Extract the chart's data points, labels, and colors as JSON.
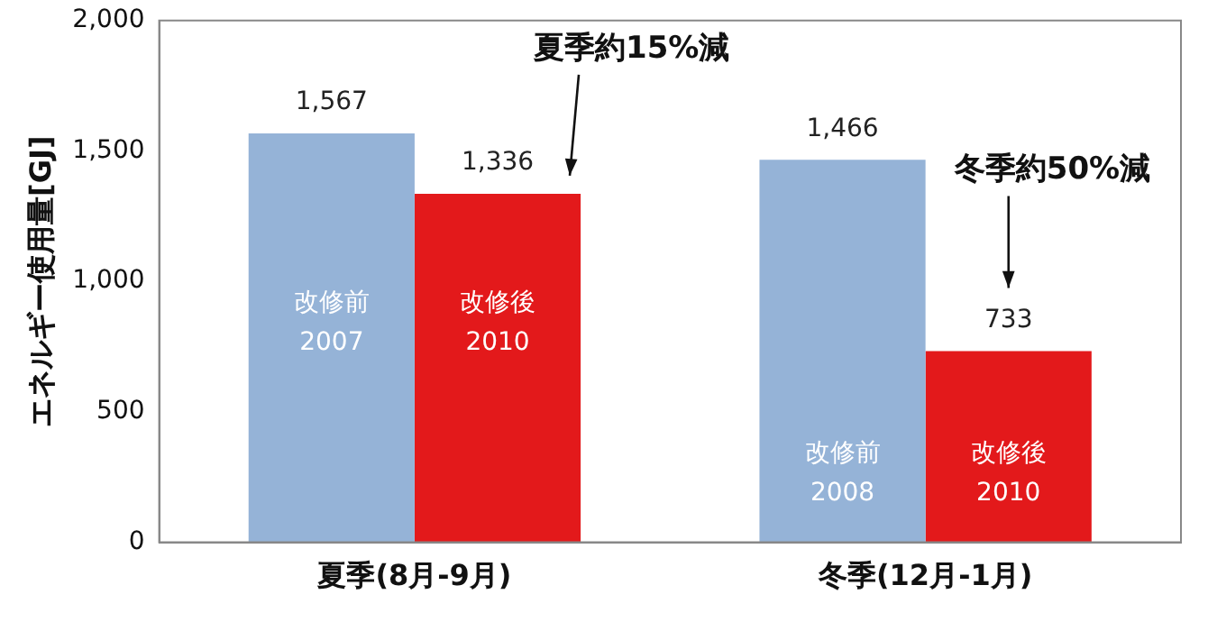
{
  "chart_data": {
    "type": "bar",
    "ylabel": "エネルギー使用量[GJ]",
    "categories": [
      "夏季(8月-9月)",
      "冬季(12月-1月)"
    ],
    "series": [
      {
        "color": "#95b3d7",
        "values": [
          1567,
          1466
        ],
        "value_labels": [
          "1,567",
          "1,466"
        ]
      },
      {
        "color": "#e3191b",
        "values": [
          1336,
          733
        ],
        "value_labels": [
          "1,336",
          "733"
        ]
      }
    ],
    "ylim": [
      0,
      2000
    ],
    "yticks": [
      {
        "value": 0,
        "label": "0"
      },
      {
        "value": 500,
        "label": "500"
      },
      {
        "value": 1000,
        "label": "1,000"
      },
      {
        "value": 1500,
        "label": "1,500"
      },
      {
        "value": 2000,
        "label": "2,000"
      }
    ],
    "grid": false,
    "legend": false,
    "annotations": [
      "夏季約15%減",
      "冬季約50%減",
      "改修前\n2007",
      "改修後\n2010",
      "改修前\n2008",
      "改修後\n2010"
    ]
  }
}
